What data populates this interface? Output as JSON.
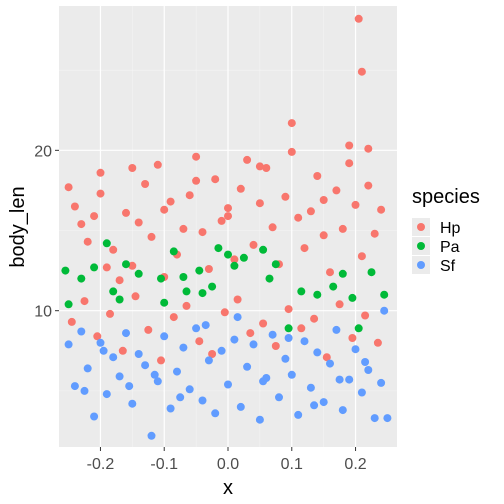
{
  "chart_data": {
    "type": "scatter",
    "title": "",
    "xlabel": "x",
    "ylabel": "body_len",
    "xlim": [
      -0.265,
      0.265
    ],
    "ylim": [
      1.5,
      29.0
    ],
    "x_ticks": [
      -0.2,
      -0.1,
      0.0,
      0.1,
      0.2
    ],
    "x_tick_labels": [
      "-0.2",
      "-0.1",
      "0.0",
      "0.1",
      "0.2"
    ],
    "y_ticks": [
      10,
      20
    ],
    "y_tick_labels": [
      "10",
      "20"
    ],
    "grid": true,
    "background": "#ebebeb",
    "legend": {
      "title": "species",
      "position": "right"
    },
    "series": [
      {
        "name": "Hp",
        "color": "#f8766d",
        "points": [
          [
            -0.25,
            17.7
          ],
          [
            -0.24,
            16.5
          ],
          [
            -0.23,
            15.4
          ],
          [
            -0.22,
            14.3
          ],
          [
            -0.21,
            15.9
          ],
          [
            -0.2,
            17.3
          ],
          [
            -0.19,
            12.7
          ],
          [
            -0.18,
            13.8
          ],
          [
            -0.17,
            11.9
          ],
          [
            -0.16,
            16.1
          ],
          [
            -0.15,
            12.8
          ],
          [
            -0.14,
            15.5
          ],
          [
            -0.13,
            17.9
          ],
          [
            -0.12,
            14.6
          ],
          [
            -0.11,
            19.1
          ],
          [
            -0.1,
            12.1
          ],
          [
            -0.09,
            16.8
          ],
          [
            -0.08,
            13.5
          ],
          [
            -0.07,
            15.1
          ],
          [
            -0.06,
            17.2
          ],
          [
            -0.05,
            19.6
          ],
          [
            -0.04,
            14.9
          ],
          [
            -0.03,
            12.6
          ],
          [
            -0.02,
            18.2
          ],
          [
            -0.01,
            15.6
          ],
          [
            0.0,
            16.4
          ],
          [
            0.01,
            13.2
          ],
          [
            0.02,
            17.6
          ],
          [
            0.03,
            19.4
          ],
          [
            0.04,
            14.1
          ],
          [
            0.05,
            16.7
          ],
          [
            0.06,
            18.9
          ],
          [
            0.07,
            15.2
          ],
          [
            0.08,
            12.9
          ],
          [
            0.09,
            17.1
          ],
          [
            0.1,
            19.9
          ],
          [
            0.11,
            15.8
          ],
          [
            0.12,
            13.9
          ],
          [
            0.13,
            16.2
          ],
          [
            0.14,
            18.4
          ],
          [
            0.15,
            14.7
          ],
          [
            0.16,
            12.4
          ],
          [
            0.17,
            17.5
          ],
          [
            0.18,
            15.1
          ],
          [
            0.19,
            19.2
          ],
          [
            0.2,
            16.6
          ],
          [
            0.21,
            13.4
          ],
          [
            0.22,
            17.8
          ],
          [
            0.23,
            14.8
          ],
          [
            0.24,
            16.3
          ],
          [
            -0.245,
            9.3
          ],
          [
            -0.225,
            10.6
          ],
          [
            -0.205,
            8.4
          ],
          [
            -0.185,
            9.8
          ],
          [
            -0.165,
            7.5
          ],
          [
            -0.145,
            10.9
          ],
          [
            -0.125,
            8.8
          ],
          [
            -0.105,
            6.9
          ],
          [
            -0.085,
            9.6
          ],
          [
            -0.065,
            10.3
          ],
          [
            -0.045,
            8.1
          ],
          [
            -0.025,
            7.3
          ],
          [
            -0.005,
            9.9
          ],
          [
            0.015,
            10.7
          ],
          [
            0.035,
            8.6
          ],
          [
            0.055,
            9.2
          ],
          [
            0.075,
            7.8
          ],
          [
            0.095,
            10.1
          ],
          [
            0.115,
            8.9
          ],
          [
            0.135,
            9.5
          ],
          [
            0.155,
            7.1
          ],
          [
            0.175,
            10.4
          ],
          [
            0.195,
            8.3
          ],
          [
            0.215,
            9.7
          ],
          [
            0.235,
            8.0
          ],
          [
            -0.2,
            18.6
          ],
          [
            -0.15,
            18.9
          ],
          [
            -0.1,
            16.3
          ],
          [
            -0.05,
            18.1
          ],
          [
            0.0,
            15.9
          ],
          [
            0.05,
            19.0
          ],
          [
            0.1,
            21.7
          ],
          [
            0.15,
            16.9
          ],
          [
            0.19,
            20.3
          ],
          [
            0.205,
            28.2
          ],
          [
            0.21,
            24.9
          ],
          [
            0.22,
            20.1
          ]
        ]
      },
      {
        "name": "Pa",
        "color": "#00ba38",
        "points": [
          [
            -0.255,
            12.5
          ],
          [
            -0.25,
            10.4
          ],
          [
            -0.23,
            12.0
          ],
          [
            -0.21,
            12.7
          ],
          [
            -0.19,
            14.2
          ],
          [
            -0.18,
            11.2
          ],
          [
            -0.17,
            10.7
          ],
          [
            -0.16,
            12.9
          ],
          [
            -0.14,
            12.3
          ],
          [
            -0.105,
            12.0
          ],
          [
            -0.1,
            10.5
          ],
          [
            -0.085,
            13.7
          ],
          [
            -0.07,
            12.1
          ],
          [
            -0.065,
            11.2
          ],
          [
            -0.045,
            12.5
          ],
          [
            -0.04,
            11.1
          ],
          [
            -0.025,
            11.5
          ],
          [
            -0.015,
            13.9
          ],
          [
            0.0,
            13.5
          ],
          [
            0.01,
            12.8
          ],
          [
            0.025,
            13.3
          ],
          [
            0.055,
            13.8
          ],
          [
            0.065,
            12.0
          ],
          [
            0.075,
            12.9
          ],
          [
            0.095,
            8.9
          ],
          [
            0.115,
            11.2
          ],
          [
            0.14,
            11.0
          ],
          [
            0.165,
            11.5
          ],
          [
            0.18,
            12.3
          ],
          [
            0.195,
            10.8
          ],
          [
            0.205,
            8.9
          ],
          [
            0.225,
            12.4
          ],
          [
            0.245,
            11.0
          ]
        ]
      },
      {
        "name": "Sf",
        "color": "#619cff",
        "points": [
          [
            -0.25,
            7.9
          ],
          [
            -0.24,
            5.3
          ],
          [
            -0.23,
            8.7
          ],
          [
            -0.22,
            6.4
          ],
          [
            -0.21,
            3.4
          ],
          [
            -0.2,
            8.0
          ],
          [
            -0.19,
            4.8
          ],
          [
            -0.18,
            7.1
          ],
          [
            -0.17,
            5.9
          ],
          [
            -0.16,
            8.6
          ],
          [
            -0.15,
            4.2
          ],
          [
            -0.14,
            7.3
          ],
          [
            -0.13,
            6.6
          ],
          [
            -0.12,
            2.2
          ],
          [
            -0.11,
            5.6
          ],
          [
            -0.1,
            8.4
          ],
          [
            -0.09,
            3.9
          ],
          [
            -0.08,
            6.2
          ],
          [
            -0.07,
            7.7
          ],
          [
            -0.06,
            5.1
          ],
          [
            -0.05,
            8.9
          ],
          [
            -0.04,
            4.4
          ],
          [
            -0.03,
            6.9
          ],
          [
            -0.02,
            3.6
          ],
          [
            -0.01,
            7.5
          ],
          [
            0.0,
            5.4
          ],
          [
            0.01,
            8.2
          ],
          [
            0.02,
            4.0
          ],
          [
            0.03,
            6.5
          ],
          [
            0.04,
            7.9
          ],
          [
            0.05,
            3.2
          ],
          [
            0.06,
            5.8
          ],
          [
            0.07,
            8.5
          ],
          [
            0.08,
            4.6
          ],
          [
            0.09,
            7.0
          ],
          [
            0.1,
            6.0
          ],
          [
            0.11,
            3.5
          ],
          [
            0.12,
            8.1
          ],
          [
            0.13,
            5.2
          ],
          [
            0.14,
            7.4
          ],
          [
            0.15,
            4.3
          ],
          [
            0.16,
            6.7
          ],
          [
            0.17,
            8.8
          ],
          [
            0.18,
            3.8
          ],
          [
            0.19,
            5.7
          ],
          [
            0.2,
            7.6
          ],
          [
            0.21,
            4.9
          ],
          [
            0.22,
            6.3
          ],
          [
            0.23,
            3.3
          ],
          [
            0.24,
            5.5
          ],
          [
            0.245,
            10.0
          ],
          [
            0.25,
            3.3
          ],
          [
            -0.225,
            5.0
          ],
          [
            -0.195,
            7.5
          ],
          [
            -0.155,
            5.3
          ],
          [
            -0.115,
            6.0
          ],
          [
            -0.075,
            4.6
          ],
          [
            -0.035,
            9.1
          ],
          [
            0.015,
            9.6
          ],
          [
            0.055,
            5.6
          ],
          [
            0.095,
            8.3
          ],
          [
            0.135,
            4.1
          ],
          [
            0.175,
            5.7
          ],
          [
            0.215,
            6.8
          ]
        ]
      }
    ]
  }
}
